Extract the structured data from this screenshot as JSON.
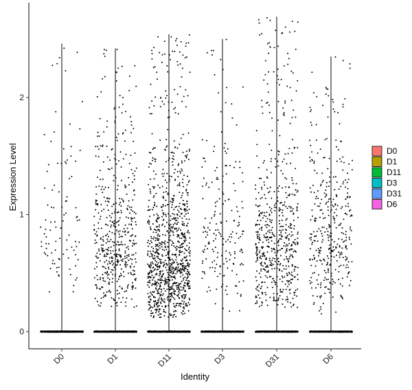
{
  "chart_data": {
    "type": "scatter",
    "subtype": "violin-jitter",
    "xlabel": "Identity",
    "ylabel": "Expression Level",
    "categories": [
      "D0",
      "D1",
      "D11",
      "D3",
      "D31",
      "D6"
    ],
    "ylim": [
      -0.08,
      2.7
    ],
    "yticks": [
      0,
      1,
      2
    ],
    "grid": false,
    "legend_position": "right",
    "legend": [
      {
        "label": "D0",
        "color": "#F8766D"
      },
      {
        "label": "D1",
        "color": "#B79F00"
      },
      {
        "label": "D11",
        "color": "#00BA38"
      },
      {
        "label": "D3",
        "color": "#00BFC4"
      },
      {
        "label": "D31",
        "color": "#619CFF"
      },
      {
        "label": "D6",
        "color": "#F564E3"
      }
    ],
    "series": [
      {
        "category": "D0",
        "max": 2.46,
        "nonzero_points": 100,
        "nonzero_range": [
          0.25,
          2.46
        ],
        "mode": 0.7
      },
      {
        "category": "D1",
        "max": 2.42,
        "nonzero_points": 500,
        "nonzero_range": [
          0.2,
          2.42
        ],
        "mode": 0.6
      },
      {
        "category": "D11",
        "max": 2.54,
        "nonzero_points": 1050,
        "nonzero_range": [
          0.12,
          2.54
        ],
        "mode": 0.45
      },
      {
        "category": "D3",
        "max": 2.5,
        "nonzero_points": 200,
        "nonzero_range": [
          0.15,
          2.5
        ],
        "mode": 0.6
      },
      {
        "category": "D31",
        "max": 2.69,
        "nonzero_points": 600,
        "nonzero_range": [
          0.2,
          2.69
        ],
        "mode": 0.55
      },
      {
        "category": "D6",
        "max": 2.35,
        "nonzero_points": 380,
        "nonzero_range": [
          0.15,
          2.35
        ],
        "mode": 0.65
      }
    ],
    "zero_points_per_category": 900
  }
}
